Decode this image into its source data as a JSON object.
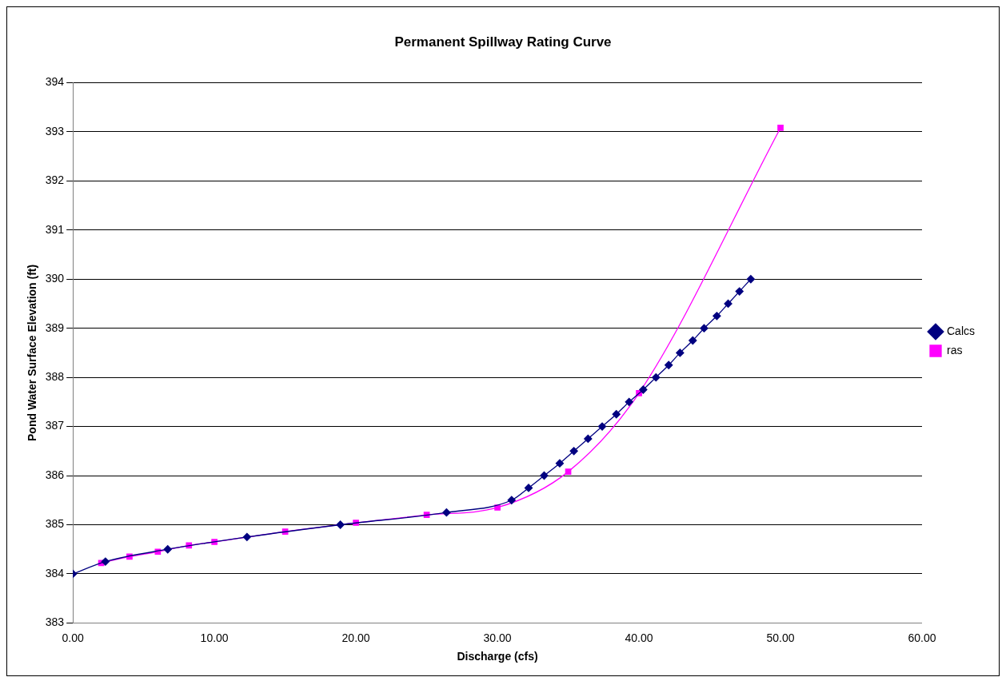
{
  "chart_data": {
    "type": "line",
    "title": "Permanent Spillway Rating Curve",
    "xlabel": "Discharge (cfs)",
    "ylabel": "Pond Water Surface Elevation (ft)",
    "xlim": [
      0,
      60
    ],
    "xticks": [
      {
        "value": 0,
        "label": "0.00"
      },
      {
        "value": 10,
        "label": "10.00"
      },
      {
        "value": 20,
        "label": "20.00"
      },
      {
        "value": 30,
        "label": "30.00"
      },
      {
        "value": 40,
        "label": "40.00"
      },
      {
        "value": 50,
        "label": "50.00"
      },
      {
        "value": 60,
        "label": "60.00"
      }
    ],
    "ylim": [
      383,
      394
    ],
    "yticks": [
      383,
      384,
      385,
      386,
      387,
      388,
      389,
      390,
      391,
      392,
      393,
      394
    ],
    "grid": "y",
    "legend": "right",
    "line_style": "solid",
    "series": [
      {
        "name": "Calcs",
        "color": "#000080",
        "marker": "diamond",
        "x": [
          0,
          2.3,
          6.7,
          12.3,
          18.9,
          26.4,
          31,
          32.2,
          33.3,
          34.4,
          35.4,
          36.4,
          37.4,
          38.4,
          39.3,
          40.3,
          41.2,
          42.1,
          42.9,
          43.8,
          44.6,
          45.5,
          46.3,
          47.1,
          47.9
        ],
        "values": [
          384,
          384.25,
          384.5,
          384.75,
          385,
          385.25,
          385.5,
          385.75,
          386,
          386.25,
          386.5,
          386.75,
          387,
          387.25,
          387.5,
          387.75,
          388,
          388.25,
          388.5,
          388.75,
          389,
          389.25,
          389.5,
          389.75,
          390
        ]
      },
      {
        "name": "ras",
        "color": "#ff00ff",
        "marker": "square",
        "x": [
          2,
          4,
          6,
          8.2,
          10,
          15,
          20,
          25,
          30,
          35,
          40,
          50
        ],
        "values": [
          384.22,
          384.35,
          384.45,
          384.58,
          384.65,
          384.86,
          385.04,
          385.2,
          385.35,
          386.08,
          387.68,
          393.08
        ]
      }
    ]
  }
}
